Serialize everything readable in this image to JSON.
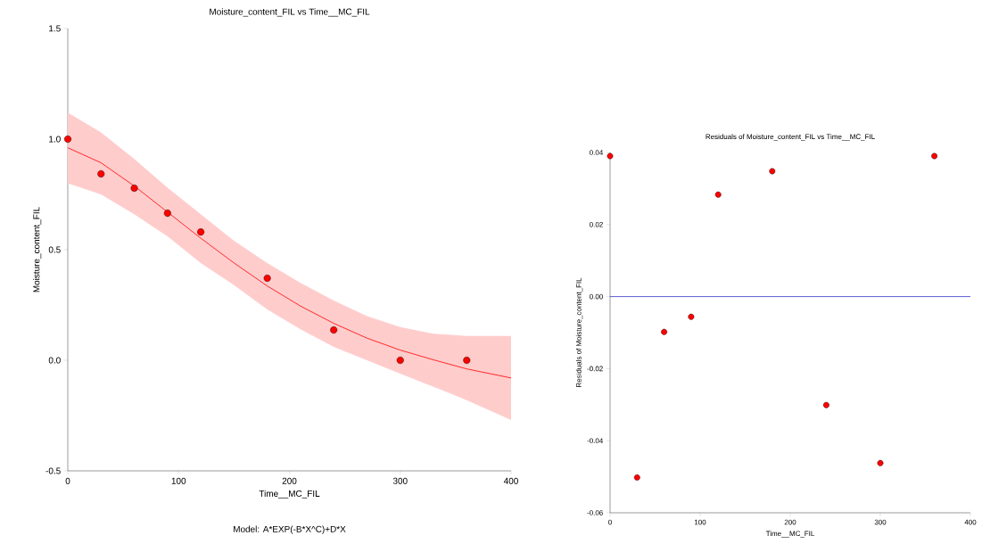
{
  "chart_data": [
    {
      "type": "scatter",
      "title": "Moisture_content_FIL vs Time__MC_FIL",
      "xlabel": "Time__MC_FIL",
      "ylabel": "Moisture_content_FIL",
      "annotations": [
        "Model: A*EXP(-B*X^C)+D*X"
      ],
      "xlim": [
        0,
        400
      ],
      "ylim": [
        -0.5,
        1.5
      ],
      "xticks": [
        0,
        100,
        200,
        300,
        400
      ],
      "yticks": [
        {
          "value": -0.5,
          "label": "-0.5"
        },
        {
          "value": 0,
          "label": "0.0"
        },
        {
          "value": 0.5,
          "label": "0.5"
        },
        {
          "value": 1,
          "label": "1.0"
        },
        {
          "value": 1.5,
          "label": "1.5"
        }
      ],
      "series": [
        {
          "type": "line",
          "color": "#ff0000",
          "x": [
            0,
            30,
            60,
            90,
            120,
            150,
            180,
            210,
            240,
            270,
            300,
            330,
            360,
            400
          ],
          "values": [
            0.961,
            0.893,
            0.788,
            0.67,
            0.552,
            0.44,
            0.336,
            0.245,
            0.167,
            0.1,
            0.046,
            0.002,
            -0.039,
            -0.08
          ],
          "upper": [
            1.12,
            1.03,
            0.91,
            0.78,
            0.66,
            0.54,
            0.44,
            0.35,
            0.27,
            0.2,
            0.15,
            0.12,
            0.11,
            0.11
          ],
          "lower": [
            0.8,
            0.75,
            0.66,
            0.56,
            0.44,
            0.34,
            0.23,
            0.14,
            0.06,
            0.0,
            -0.06,
            -0.12,
            -0.18,
            -0.27
          ],
          "marker": "none"
        },
        {
          "color": "#ff0000",
          "marker": "circle",
          "x": [
            0,
            30,
            60,
            90,
            120,
            180,
            240,
            300,
            360
          ],
          "values": [
            1.0,
            0.843,
            0.778,
            0.665,
            0.58,
            0.371,
            0.137,
            0.0,
            0.0
          ]
        }
      ]
    },
    {
      "type": "scatter",
      "title": "Residuals of Moisture_content_FIL vs Time__MC_FIL",
      "xlabel": "Time__MC_FIL",
      "ylabel": "Residuals of Moisture_content_FIL",
      "xlim": [
        0,
        400
      ],
      "ylim": [
        -0.06,
        0.04
      ],
      "xticks": [
        0,
        100,
        200,
        300,
        400
      ],
      "yticks": [
        {
          "value": -0.06,
          "label": "-0.06"
        },
        {
          "value": -0.04,
          "label": "-0.04"
        },
        {
          "value": -0.02,
          "label": "-0.02"
        },
        {
          "value": 0,
          "label": "0.00"
        },
        {
          "value": 0.02,
          "label": "0.02"
        },
        {
          "value": 0.04,
          "label": "0.04"
        }
      ],
      "ref_lines": [
        {
          "axis": "y",
          "value": 0,
          "color": "#3333cc"
        }
      ],
      "series": [
        {
          "color": "#ff0000",
          "marker": "circle",
          "x": [
            0,
            30,
            60,
            90,
            120,
            180,
            240,
            300,
            360
          ],
          "values": [
            0.039,
            -0.0502,
            -0.0098,
            -0.0056,
            0.0283,
            0.0348,
            -0.0301,
            -0.0462,
            0.039
          ]
        }
      ]
    }
  ]
}
